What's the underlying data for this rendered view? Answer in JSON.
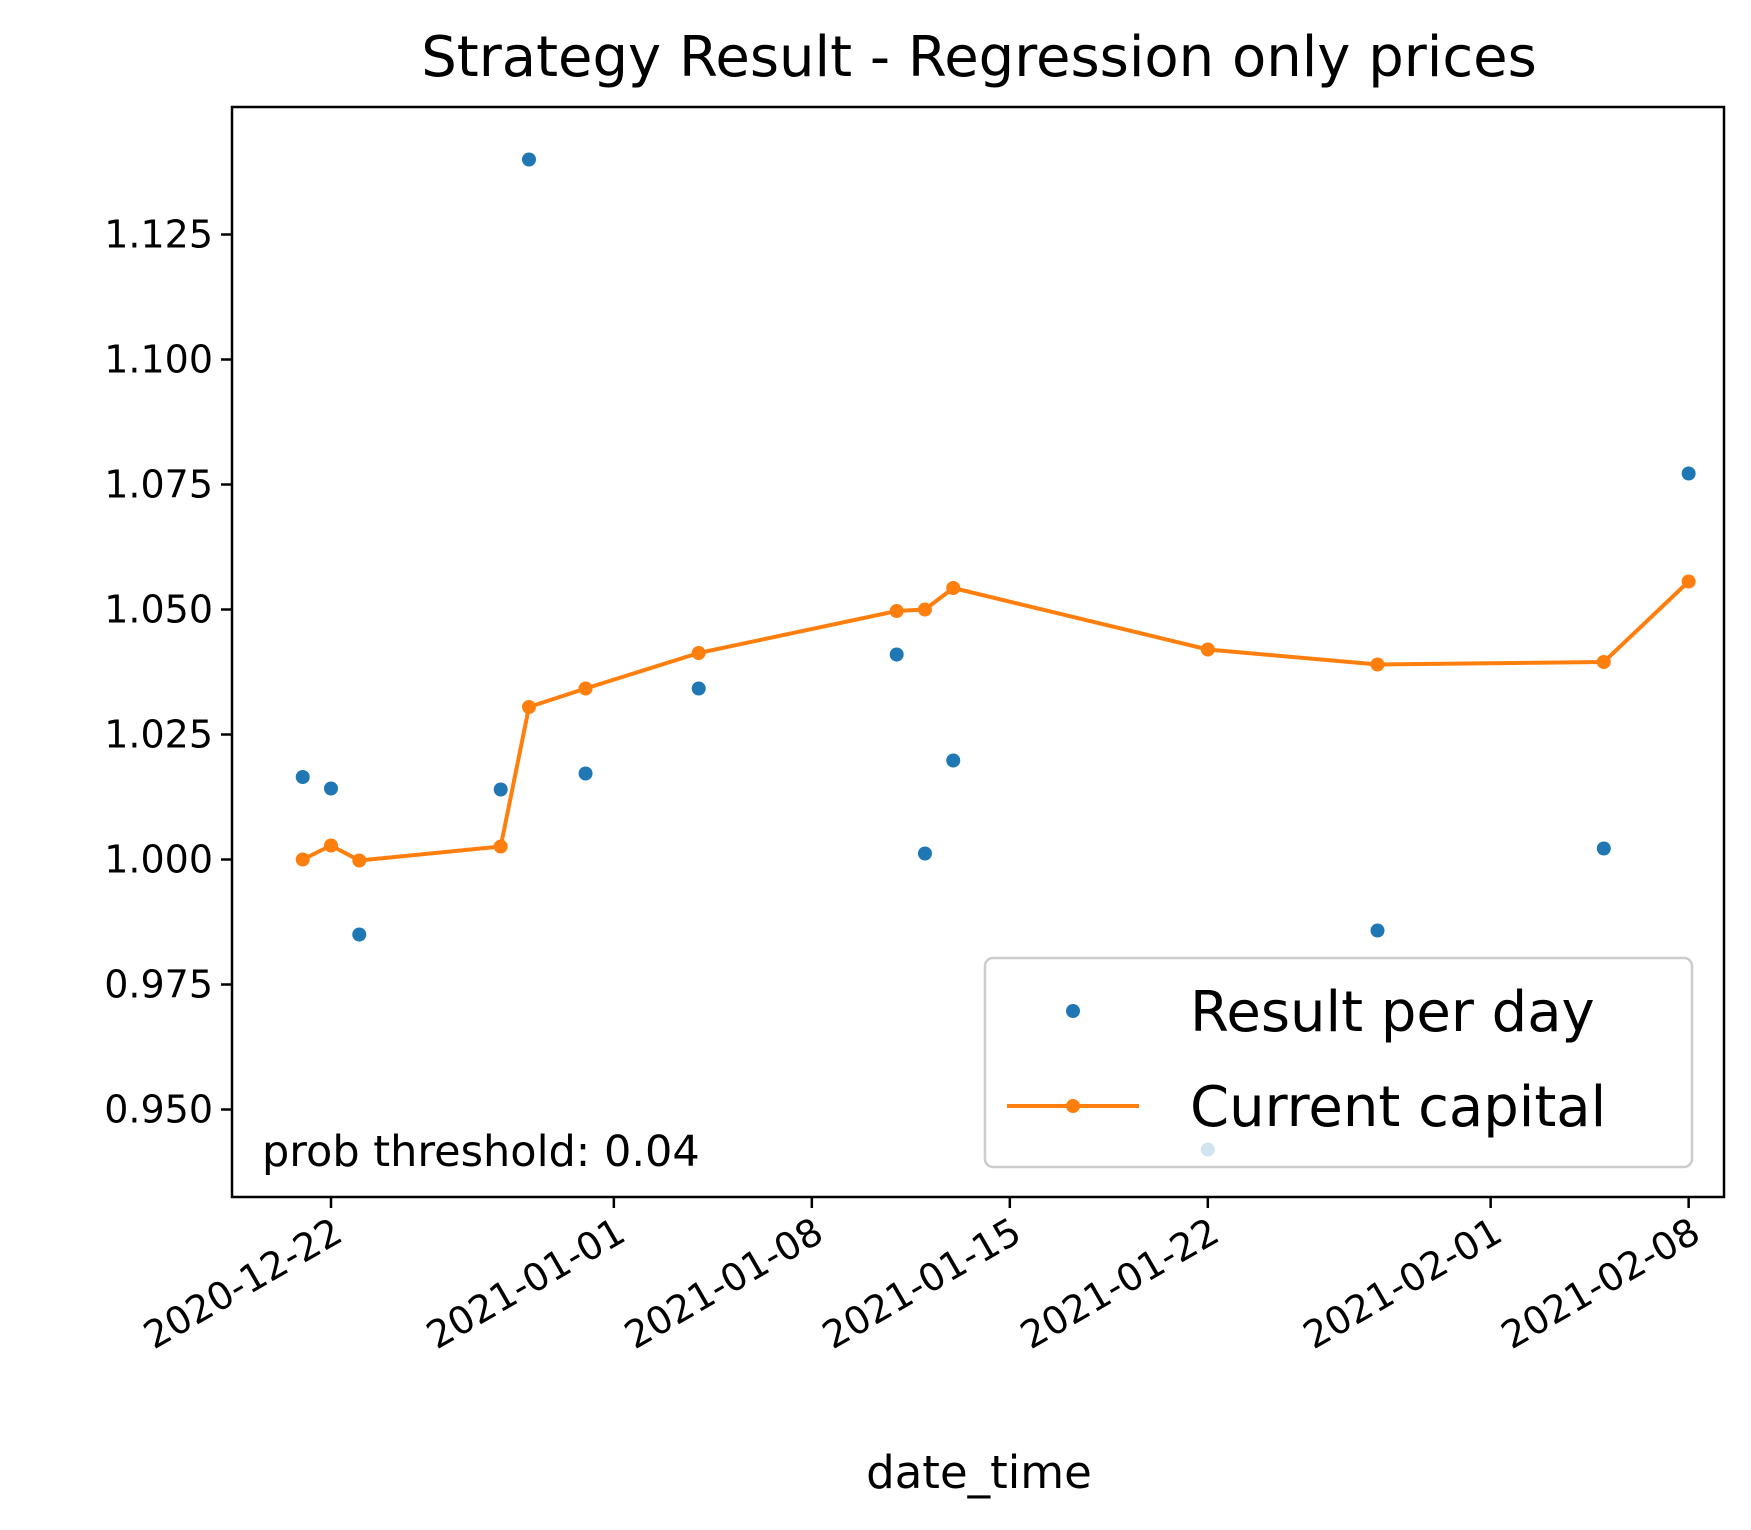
{
  "chart_data": {
    "type": "scatter",
    "title": "Strategy Result - Regression only prices",
    "xlabel": "date_time",
    "ylabel": "",
    "x_axis_type": "date",
    "xlim": [
      "2020-12-18T12:00",
      "2021-02-09T06:00"
    ],
    "ylim": [
      0.9325,
      1.1505
    ],
    "x_ticks": [
      "2020-12-22",
      "2021-01-01",
      "2021-01-08",
      "2021-01-15",
      "2021-01-22",
      "2021-02-01",
      "2021-02-08"
    ],
    "y_ticks": [
      0.95,
      0.975,
      1.0,
      1.025,
      1.05,
      1.075,
      1.1,
      1.125
    ],
    "y_tick_labels": [
      "0.950",
      "0.975",
      "1.000",
      "1.025",
      "1.050",
      "1.075",
      "1.100",
      "1.125"
    ],
    "x_tick_rotation": 30,
    "grid": false,
    "legend_position": "bottom-right",
    "annotation": "prob threshold: 0.04",
    "series": [
      {
        "name": "Result per day",
        "style": "points",
        "color": "#1f77b4",
        "x": [
          "2020-12-21",
          "2020-12-22",
          "2020-12-23",
          "2020-12-28",
          "2020-12-29",
          "2020-12-31",
          "2021-01-04",
          "2021-01-11",
          "2021-01-12",
          "2021-01-13",
          "2021-01-22",
          "2021-01-28",
          "2021-02-05",
          "2021-02-08"
        ],
        "values": [
          1.0165,
          1.0142,
          0.985,
          1.014,
          1.14,
          1.0172,
          1.0342,
          1.041,
          1.0012,
          1.0198,
          0.942,
          0.9858,
          1.0022,
          1.0772
        ]
      },
      {
        "name": "Current capital",
        "style": "line-with-markers",
        "color": "#ff7f0e",
        "x": [
          "2020-12-21",
          "2020-12-22",
          "2020-12-23",
          "2020-12-28",
          "2020-12-29",
          "2020-12-31",
          "2021-01-04",
          "2021-01-11",
          "2021-01-12",
          "2021-01-13",
          "2021-01-22",
          "2021-01-28",
          "2021-02-05",
          "2021-02-08"
        ],
        "values": [
          1.0,
          1.0028,
          0.9998,
          1.0026,
          1.0305,
          1.0342,
          1.0413,
          1.0497,
          1.05,
          1.0543,
          1.042,
          1.039,
          1.0395,
          1.0556
        ]
      }
    ]
  }
}
